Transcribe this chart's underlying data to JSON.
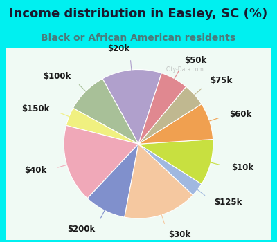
{
  "title": "Income distribution in Easley, SC (%)",
  "subtitle": "Black or African American residents",
  "bg_cyan": "#00f0f0",
  "bg_chart": "#d8f0e8",
  "labels": [
    "$20k",
    "$100k",
    "$150k",
    "$40k",
    "$200k",
    "$30k",
    "$125k",
    "$10k",
    "$60k",
    "$75k",
    "$50k"
  ],
  "sizes": [
    13,
    9,
    4,
    17,
    9,
    16,
    3,
    10,
    8,
    5,
    6
  ],
  "colors": [
    "#b0a0cc",
    "#a8c098",
    "#f0f080",
    "#f0a8b8",
    "#8090cc",
    "#f5c8a0",
    "#a0b8e0",
    "#c8e040",
    "#f0a050",
    "#c0b890",
    "#e08890"
  ],
  "startangle": 72,
  "title_fontsize": 13,
  "subtitle_fontsize": 10,
  "label_fontsize": 8.5
}
